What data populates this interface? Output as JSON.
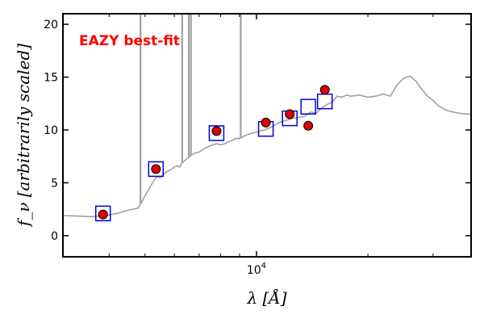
{
  "chart_data": {
    "type": "scatter",
    "annotation": "EAZY best-fit",
    "annotation_color": "#ff0000",
    "xlabel": "λ [Å]",
    "ylabel": "f_ν [arbitrarily scaled]",
    "x_scale": "log",
    "xlim": [
      3000,
      38000
    ],
    "ylim": [
      -2,
      21
    ],
    "yticks": [
      0,
      5,
      10,
      15,
      20
    ],
    "xtick_label": "10^4",
    "xtick_label_base": "10",
    "xtick_label_exp": "4",
    "grid": false,
    "colors": {
      "template": "#a0a0a0",
      "model_box": "#0000dd",
      "observed_fill": "#dd0000",
      "observed_edge": "#000000"
    },
    "series": [
      {
        "kind": "template_line",
        "x": [
          3000,
          3300,
          3600,
          3900,
          4200,
          4500,
          4780,
          4800,
          4900,
          5000,
          5100,
          5200,
          5300,
          5400,
          5500,
          5700,
          5900,
          6000,
          6100,
          6200,
          6300,
          6400,
          6600,
          6800,
          7000,
          7200,
          7500,
          7800,
          8000,
          8200,
          8400,
          8600,
          8800,
          9000,
          9500,
          10000,
          10500,
          11000,
          11500,
          12000,
          12500,
          13000,
          13500,
          14000,
          14500,
          15000,
          15500,
          16000,
          16500,
          17000,
          17500,
          18000,
          19000,
          20000,
          21000,
          22000,
          23000,
          24000,
          25000,
          26000,
          27000,
          28000,
          29000,
          30000,
          31000,
          32000,
          33000,
          34000,
          35000,
          36000,
          37000,
          38000
        ],
        "y": [
          1.9,
          1.85,
          1.8,
          1.9,
          2.1,
          2.4,
          2.6,
          2.7,
          3.2,
          3.8,
          4.3,
          4.8,
          5.3,
          5.6,
          5.5,
          6.0,
          6.3,
          6.5,
          6.6,
          6.5,
          6.9,
          7.1,
          7.5,
          7.8,
          7.9,
          8.2,
          8.5,
          8.7,
          8.6,
          8.7,
          8.9,
          9.0,
          9.2,
          9.2,
          9.6,
          9.8,
          10.0,
          10.3,
          10.7,
          10.9,
          11.1,
          11.2,
          11.3,
          11.7,
          11.6,
          12.1,
          12.4,
          12.6,
          13.2,
          13.1,
          13.3,
          13.2,
          13.3,
          13.1,
          13.2,
          13.4,
          13.2,
          14.3,
          14.9,
          15.1,
          14.6,
          13.8,
          13.2,
          12.8,
          12.3,
          12.0,
          11.8,
          11.7,
          11.6,
          11.55,
          11.5,
          11.5
        ]
      },
      {
        "kind": "emission_spikes",
        "x": [
          4861,
          6300,
          6563,
          6650,
          9069
        ],
        "top": [
          21,
          21,
          21,
          21,
          21
        ]
      },
      {
        "kind": "model_squares",
        "x": [
          3850,
          5350,
          7800,
          10600,
          12300,
          13800,
          15300
        ],
        "y": [
          2.1,
          6.3,
          9.7,
          10.1,
          11.1,
          12.2,
          12.7
        ]
      },
      {
        "kind": "observed_points",
        "x": [
          3850,
          5350,
          7800,
          10600,
          12300,
          13800,
          15300
        ],
        "y": [
          2.0,
          6.3,
          9.9,
          10.7,
          11.5,
          10.4,
          13.8
        ]
      }
    ]
  }
}
